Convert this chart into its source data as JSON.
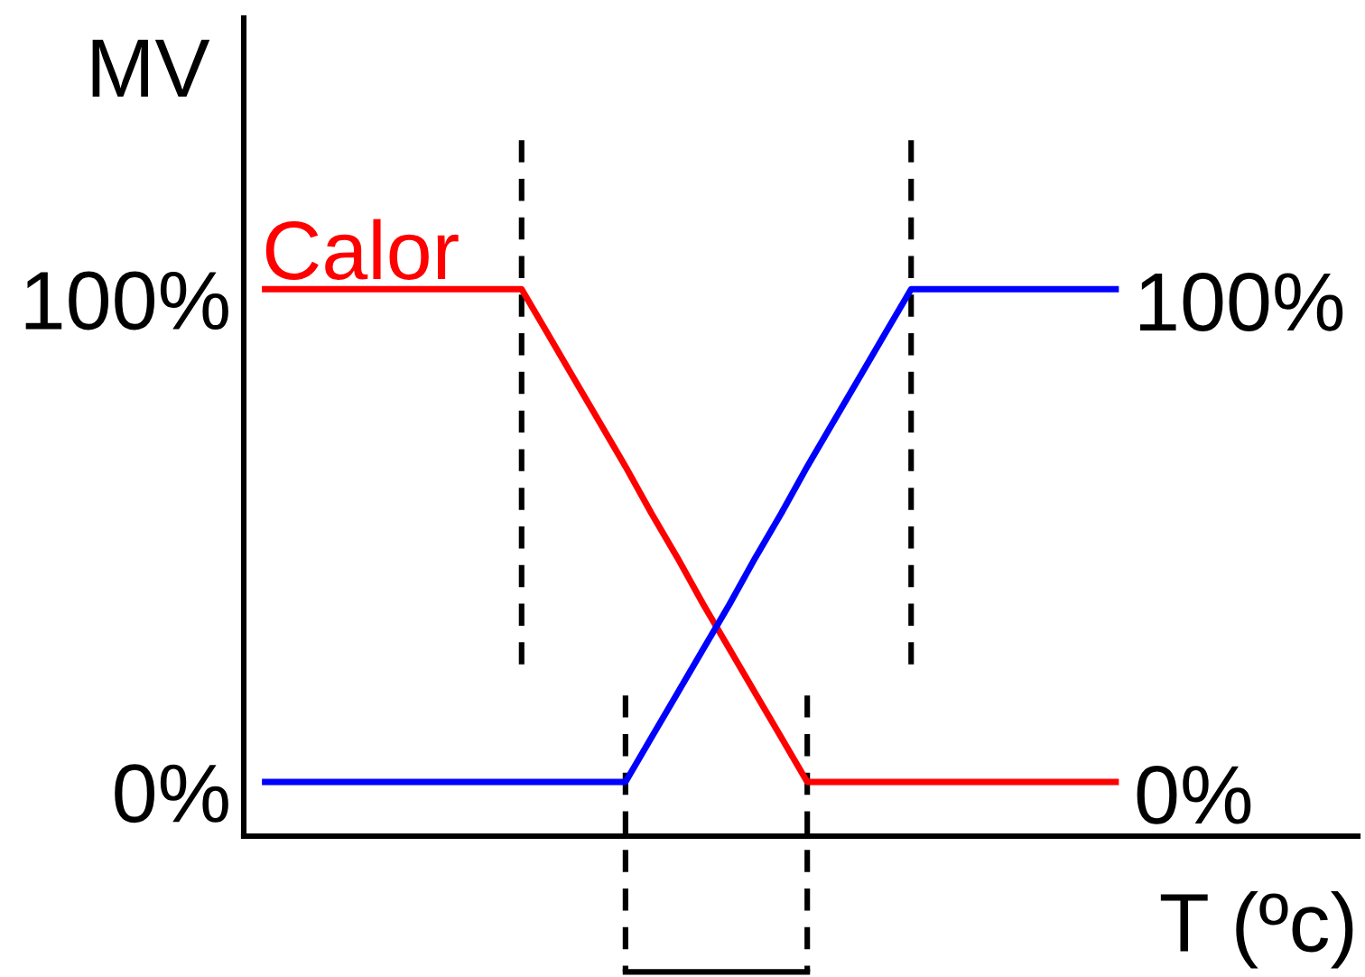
{
  "chart_data": {
    "type": "line",
    "ylabel": "MV",
    "xlabel": "T (ºc)",
    "categories": [
      null,
      null,
      null,
      null,
      null,
      null,
      null,
      null,
      null,
      null,
      null,
      null,
      null,
      null,
      null,
      null,
      null,
      null,
      null,
      null,
      null,
      null,
      null,
      null,
      null,
      null,
      null,
      null,
      null,
      null,
      null,
      null,
      null,
      null
    ],
    "series": [
      {
        "name": "Calor",
        "color": "#ff0000",
        "values": [
          100,
          100,
          100,
          100,
          100,
          100,
          100,
          100,
          100,
          100,
          100,
          91,
          82,
          73,
          64,
          54.5,
          45.5,
          36,
          27,
          18,
          9,
          0,
          0,
          0,
          0,
          0,
          0,
          0,
          0,
          0,
          0,
          0,
          0,
          0
        ],
        "value_labels": [
          null,
          null,
          null,
          null,
          null,
          null,
          null,
          null,
          null,
          null,
          null,
          null,
          null,
          null,
          null,
          null,
          null,
          null,
          null,
          null,
          null,
          null,
          null,
          null,
          null,
          null,
          null,
          null,
          null,
          null,
          null,
          null,
          null,
          "0%"
        ]
      },
      {
        "color": "#0000ff",
        "values": [
          0,
          0,
          0,
          0,
          0,
          0,
          0,
          0,
          0,
          0,
          0,
          0,
          0,
          0,
          0,
          9,
          18,
          27,
          36,
          45.5,
          54.5,
          64,
          73,
          82,
          91,
          100,
          100,
          100,
          100,
          100,
          100,
          100,
          100,
          100
        ],
        "value_labels": [
          null,
          null,
          null,
          null,
          null,
          null,
          null,
          null,
          null,
          null,
          null,
          null,
          null,
          null,
          null,
          null,
          null,
          null,
          null,
          null,
          null,
          null,
          null,
          null,
          null,
          null,
          null,
          null,
          null,
          null,
          null,
          null,
          null,
          "100%"
        ]
      }
    ],
    "ylim": [
      -11,
      155
    ],
    "yticks": [
      {
        "value": 0,
        "label": "0%"
      },
      {
        "value": 100,
        "label": "100%"
      }
    ],
    "tick_labels": "y",
    "marker": "none",
    "line_style": "solid"
  }
}
